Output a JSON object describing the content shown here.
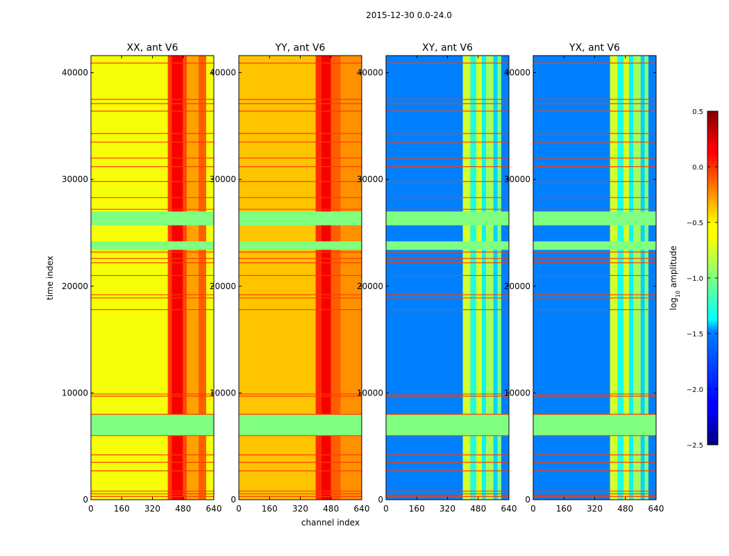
{
  "figure_title": "2015-12-30 0.0-24.0",
  "ylabel": "time index",
  "xlabel": "channel index",
  "colorbar": {
    "label": "log10 amplitude",
    "label_base": "log",
    "label_sub": "10",
    "label_rest": " amplitude",
    "ticks": [
      "0.5",
      "0.0",
      "−0.5",
      "−1.0",
      "−1.5",
      "−2.0",
      "−2.5"
    ]
  },
  "chart_data": [
    {
      "type": "heatmap",
      "title": "XX, ant V6",
      "xlim": [
        0,
        640
      ],
      "ylim": [
        0,
        41600
      ],
      "xticks": [
        "0",
        "160",
        "320",
        "480",
        "640"
      ],
      "yticks": [
        "0",
        "10000",
        "20000",
        "30000",
        "40000"
      ],
      "base_value": -0.65,
      "channel_bands": [
        {
          "from": 400,
          "to": 420,
          "value": -0.05
        },
        {
          "from": 420,
          "to": 480,
          "value": 0.15
        },
        {
          "from": 480,
          "to": 500,
          "value": -0.1
        },
        {
          "from": 500,
          "to": 560,
          "value": -0.35
        },
        {
          "from": 560,
          "to": 600,
          "value": -0.15
        }
      ],
      "value_range": [
        -2.5,
        0.5
      ]
    },
    {
      "type": "heatmap",
      "title": "YY, ant V6",
      "xlim": [
        0,
        640
      ],
      "ylim": [
        0,
        41600
      ],
      "xticks": [
        "0",
        "160",
        "320",
        "480",
        "640"
      ],
      "yticks": [
        "0",
        "10000",
        "20000",
        "30000",
        "40000"
      ],
      "base_value": -0.45,
      "channel_bands": [
        {
          "from": 400,
          "to": 430,
          "value": 0.0
        },
        {
          "from": 430,
          "to": 480,
          "value": 0.15
        },
        {
          "from": 480,
          "to": 530,
          "value": -0.15
        },
        {
          "from": 530,
          "to": 640,
          "value": -0.3
        }
      ],
      "value_range": [
        -2.5,
        0.5
      ]
    },
    {
      "type": "heatmap",
      "title": "XY, ant V6",
      "xlim": [
        0,
        640
      ],
      "ylim": [
        0,
        41600
      ],
      "xticks": [
        "0",
        "160",
        "320",
        "480",
        "640"
      ],
      "yticks": [
        "0",
        "10000",
        "20000",
        "30000",
        "40000"
      ],
      "base_value": -1.75,
      "channel_bands": [
        {
          "from": 400,
          "to": 440,
          "value": -0.75
        },
        {
          "from": 440,
          "to": 470,
          "value": -1.3
        },
        {
          "from": 470,
          "to": 500,
          "value": -0.75
        },
        {
          "from": 500,
          "to": 520,
          "value": -1.4
        },
        {
          "from": 520,
          "to": 560,
          "value": -0.9
        },
        {
          "from": 560,
          "to": 580,
          "value": -1.5
        },
        {
          "from": 580,
          "to": 600,
          "value": -1.0
        }
      ],
      "value_range": [
        -2.5,
        0.5
      ]
    },
    {
      "type": "heatmap",
      "title": "YX, ant V6",
      "xlim": [
        0,
        640
      ],
      "ylim": [
        0,
        41600
      ],
      "xticks": [
        "0",
        "160",
        "320",
        "480",
        "640"
      ],
      "yticks": [
        "0",
        "10000",
        "20000",
        "30000",
        "40000"
      ],
      "base_value": -1.75,
      "channel_bands": [
        {
          "from": 400,
          "to": 440,
          "value": -0.75
        },
        {
          "from": 440,
          "to": 470,
          "value": -1.3
        },
        {
          "from": 470,
          "to": 500,
          "value": -0.75
        },
        {
          "from": 500,
          "to": 520,
          "value": -1.4
        },
        {
          "from": 520,
          "to": 560,
          "value": -0.9
        },
        {
          "from": 560,
          "to": 580,
          "value": -1.5
        },
        {
          "from": 580,
          "to": 600,
          "value": -1.0
        }
      ],
      "value_range": [
        -2.5,
        0.5
      ]
    }
  ],
  "flagged_time_blocks": [
    {
      "from": 6000,
      "to": 8000,
      "value": -1.0
    },
    {
      "from": 23400,
      "to": 24200,
      "value": -1.0
    },
    {
      "from": 25700,
      "to": 27000,
      "value": -1.0
    }
  ],
  "flagged_time_lines": [
    300,
    550,
    800,
    2700,
    3500,
    4200,
    6000,
    8000,
    9700,
    9900,
    17800,
    18900,
    19200,
    21000,
    22200,
    22600,
    23200,
    27200,
    28300,
    29800,
    31200,
    32000,
    33500,
    34300,
    36400,
    37100,
    37500,
    40900
  ]
}
